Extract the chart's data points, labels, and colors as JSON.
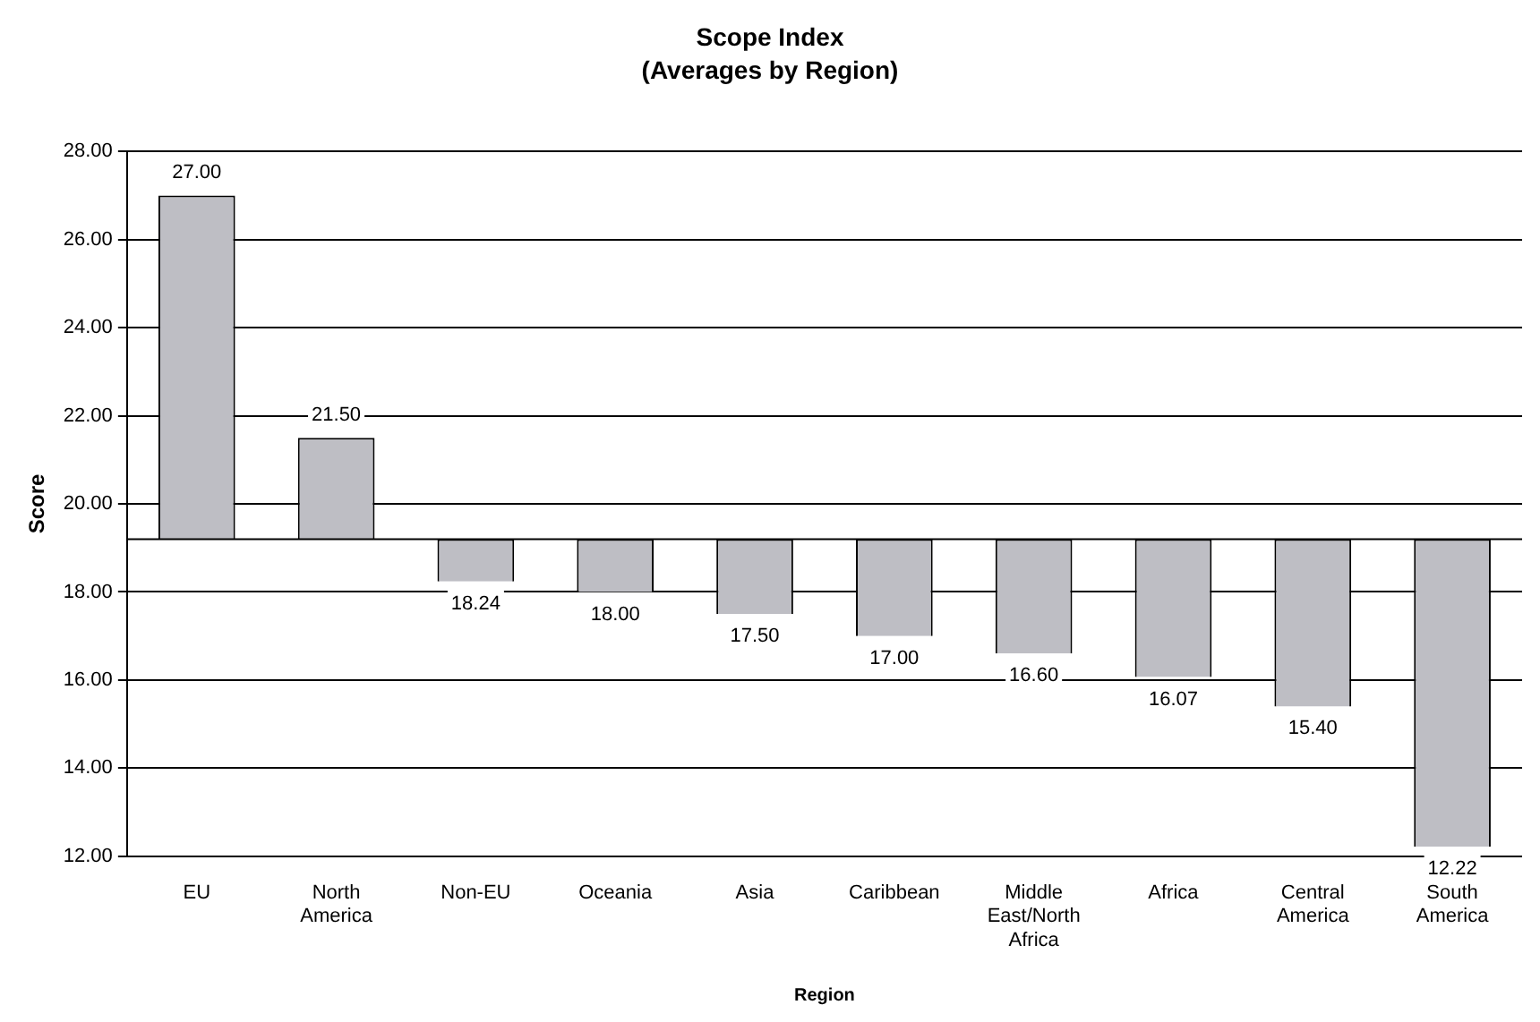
{
  "chart_data": {
    "type": "bar",
    "title": "Scope Index",
    "subtitle": "(Averages by Region)",
    "xlabel": "Region",
    "ylabel": "Score",
    "categories": [
      "EU",
      "North America",
      "Non-EU",
      "Oceania",
      "Asia",
      "Caribbean",
      "Middle East/North Africa",
      "Africa",
      "Central America",
      "South America"
    ],
    "base": [
      19.2,
      19.2,
      19.2,
      19.2,
      19.2,
      19.2,
      19.2,
      19.2,
      19.2,
      19.2
    ],
    "values": [
      7.8,
      2.3,
      -0.96,
      -1.2,
      -1.7,
      -2.2,
      -2.6,
      -3.13,
      -3.8,
      -6.98
    ],
    "value_labels": [
      "27.00",
      "21.50",
      "18.24",
      "18.00",
      "17.50",
      "17.00",
      "16.60",
      "16.07",
      "15.40",
      "12.22"
    ],
    "color": "#bebec4",
    "ylim": [
      12,
      28
    ],
    "yticks": [
      {
        "value": 12,
        "label": "12.00"
      },
      {
        "value": 14,
        "label": "14.00"
      },
      {
        "value": 16,
        "label": "16.00"
      },
      {
        "value": 18,
        "label": "18.00"
      },
      {
        "value": 20,
        "label": "20.00"
      },
      {
        "value": 22,
        "label": "22.00"
      },
      {
        "value": 24,
        "label": "24.00"
      },
      {
        "value": 26,
        "label": "26.00"
      },
      {
        "value": 28,
        "label": "28.00"
      }
    ],
    "ref_lines": [
      {
        "axis": "y",
        "value": 19.2,
        "color": "#000000"
      }
    ],
    "grid": "y",
    "legend": false
  }
}
